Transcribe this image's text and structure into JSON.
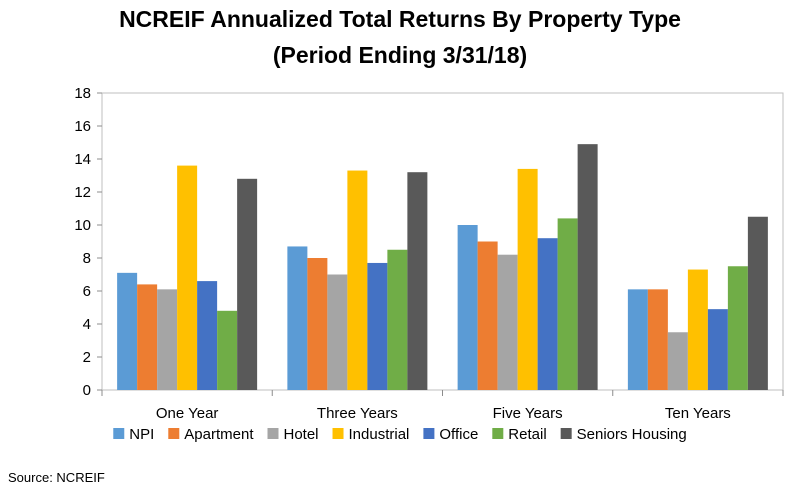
{
  "chart_data": {
    "type": "bar",
    "title_line1": "NCREIF Annualized Total Returns By Property Type",
    "title_line2": "(Period Ending 3/31/18)",
    "categories": [
      "One Year",
      "Three Years",
      "Five Years",
      "Ten Years"
    ],
    "series": [
      {
        "name": "NPI",
        "color": "#5B9BD5",
        "values": [
          7.1,
          8.7,
          10.0,
          6.1
        ]
      },
      {
        "name": "Apartment",
        "color": "#ED7D31",
        "values": [
          6.4,
          8.0,
          9.0,
          6.1
        ]
      },
      {
        "name": "Hotel",
        "color": "#A5A5A5",
        "values": [
          6.1,
          7.0,
          8.2,
          3.5
        ]
      },
      {
        "name": "Industrial",
        "color": "#FFC000",
        "values": [
          13.6,
          13.3,
          13.4,
          7.3
        ]
      },
      {
        "name": "Office",
        "color": "#4472C4",
        "values": [
          6.6,
          7.7,
          9.2,
          4.9
        ]
      },
      {
        "name": "Retail",
        "color": "#70AD47",
        "values": [
          4.8,
          8.5,
          10.4,
          7.5
        ]
      },
      {
        "name": "Seniors Housing",
        "color": "#595959",
        "values": [
          12.8,
          13.2,
          14.9,
          10.5
        ]
      }
    ],
    "ylim": [
      0,
      18
    ],
    "yticks": [
      "0",
      "2",
      "4",
      "6",
      "8",
      "10",
      "12",
      "14",
      "16",
      "18"
    ],
    "grid": false,
    "legend_position": "bottom"
  },
  "source_text": "Source:  NCREIF"
}
